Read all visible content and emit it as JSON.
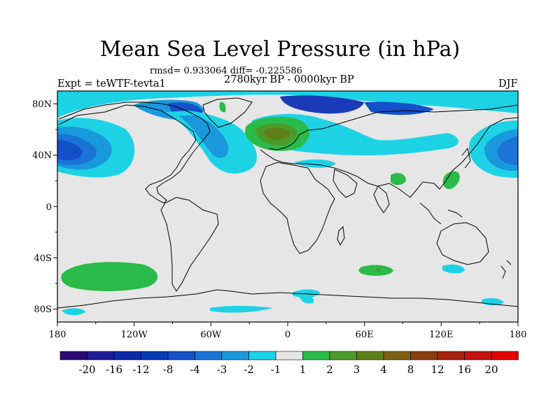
{
  "title": "Mean Sea Level Pressure (in hPa)",
  "stats": "rmsd= 0.933064 diff= -0.225586",
  "period": "2780kyr BP - 0000kyr BP",
  "experiment": "Expt = teWTF-tevta1",
  "season": "DJF",
  "chart_data": {
    "type": "heatmap",
    "projection": "cylindrical equidistant",
    "variable": "Mean Sea Level Pressure difference",
    "units": "hPa",
    "x_ticks": [
      "180",
      "120W",
      "60W",
      "0",
      "60E",
      "120E",
      "180"
    ],
    "y_ticks": [
      "80N",
      "40N",
      "0",
      "40S",
      "80S"
    ],
    "lon_range": [
      -180,
      180
    ],
    "lat_range": [
      -90,
      90
    ],
    "colorbar": {
      "levels": [
        "-20",
        "-16",
        "-12",
        "-8",
        "-4",
        "-3",
        "-2",
        "-1",
        "1",
        "2",
        "3",
        "4",
        "8",
        "12",
        "16",
        "20"
      ],
      "colors": [
        "#2a0a72",
        "#1f1c9a",
        "#0a2aa8",
        "#0a3ab8",
        "#1450c8",
        "#1a74d6",
        "#1a98dc",
        "#1ed2e6",
        "#e6e6e6",
        "#2bbb4a",
        "#4d9a2a",
        "#5f7f1a",
        "#7a6010",
        "#8a3d10",
        "#a62510",
        "#c21410",
        "#e00000"
      ]
    }
  }
}
